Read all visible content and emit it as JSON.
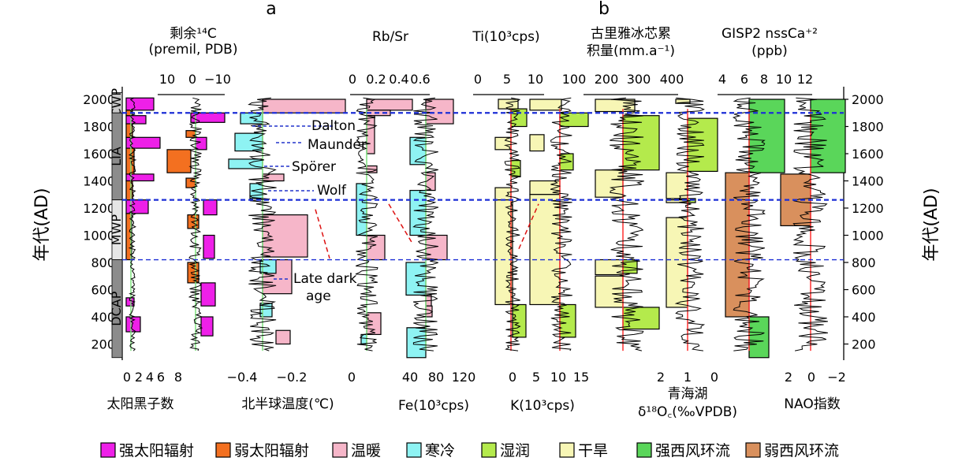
{
  "panel_labels": [
    "a",
    "b"
  ],
  "period_labels": {
    "cwp": "CWP",
    "lia": "LIA",
    "mwp": "MWP",
    "dcap": "DCAP"
  },
  "minima_labels": {
    "dalton": "Dalton",
    "maunder": "Maunder",
    "sporer": "Spörer",
    "wolf": "Wolf",
    "late_dark_age_1": "Late dark",
    "late_dark_age_2": "age"
  },
  "legend": [
    {
      "label": "强太阳辐射",
      "color": "#ee20e8"
    },
    {
      "label": "弱太阳辐射",
      "color": "#f37020"
    },
    {
      "label": "温暖",
      "color": "#f6b6c9"
    },
    {
      "label": "寒冷",
      "color": "#8ef3f3"
    },
    {
      "label": "湿润",
      "color": "#b4ea4c"
    },
    {
      "label": "干旱",
      "color": "#f7f6b5"
    },
    {
      "label": "强西风环流",
      "color": "#5ad65a"
    },
    {
      "label": "弱西风环流",
      "color": "#d9905d"
    }
  ],
  "chart_data": {
    "type": "line",
    "ylabel": "年代(AD)",
    "y_ticks": [
      "200",
      "400",
      "600",
      "800",
      "1000",
      "1200",
      "1400",
      "1600",
      "1800",
      "2000"
    ],
    "ylim": [
      100,
      2050
    ],
    "reference_lines_AD": [
      1900,
      1260,
      820
    ],
    "cwp_AD": [
      1900,
      2050
    ],
    "lia_AD": [
      1260,
      1900
    ],
    "mwp_AD": [
      820,
      1260
    ],
    "dcap_AD": [
      100,
      820
    ],
    "minima_AD": {
      "dalton": 1820,
      "maunder": 1700,
      "sporer": 1520,
      "wolf": 1350
    },
    "series": [
      {
        "key": "sunspot",
        "top_title": [],
        "top_ticks": [],
        "bottom_title": "太阳黑子数",
        "bottom_ticks": [
          "0",
          "2",
          "4",
          "6",
          "8"
        ]
      },
      {
        "key": "c14",
        "top_title": [
          "剩余¹⁴C",
          "(premil, PDB)"
        ],
        "top_ticks": [
          "10",
          "0",
          "−10"
        ],
        "bottom_title": "",
        "bottom_ticks": []
      },
      {
        "key": "nh_temp",
        "top_title": [],
        "top_ticks": [],
        "bottom_title": "北半球温度(℃)",
        "bottom_ticks": [
          "−0.4",
          "−0.2",
          "0"
        ]
      },
      {
        "key": "rbsr",
        "top_title": [
          "Rb/Sr"
        ],
        "top_ticks": [
          "0",
          "0.2",
          "0.4",
          "0.6"
        ],
        "bottom_title": "",
        "bottom_ticks": []
      },
      {
        "key": "fe",
        "top_title": [],
        "top_ticks": [],
        "bottom_title": "Fe(10³cps)",
        "bottom_ticks": [
          "40",
          "80",
          "120"
        ]
      },
      {
        "key": "ti",
        "top_title": [
          "Ti(10³cps)"
        ],
        "top_ticks": [
          "0",
          "5",
          "10"
        ],
        "bottom_title": "",
        "bottom_ticks": []
      },
      {
        "key": "k",
        "top_title": [],
        "top_ticks": [],
        "bottom_title": "K(10³cps)",
        "bottom_ticks": [
          "0",
          "5",
          "10",
          "15"
        ]
      },
      {
        "key": "guliya",
        "top_title": [
          "古里雅冰芯累",
          "积量(mm.a⁻¹)"
        ],
        "top_ticks": [
          "100",
          "200",
          "300",
          "400"
        ],
        "bottom_title": "",
        "bottom_ticks": []
      },
      {
        "key": "qinghai",
        "top_title": [],
        "top_ticks": [],
        "bottom_title": "青海湖",
        "bottom_title2": "δ¹⁸O꜀(‰VPDB)",
        "bottom_ticks": [
          "2",
          "1",
          "0"
        ]
      },
      {
        "key": "gisp2",
        "top_title": [
          "GISP2 nssCa⁺²",
          "(ppb)"
        ],
        "top_ticks": [
          "4",
          "6",
          "8",
          "10",
          "12"
        ],
        "bottom_title": "",
        "bottom_ticks": []
      },
      {
        "key": "nao",
        "top_title": [],
        "top_ticks": [],
        "bottom_title": "NAO指数",
        "bottom_ticks": [
          "2",
          "0",
          "−2"
        ]
      }
    ]
  }
}
